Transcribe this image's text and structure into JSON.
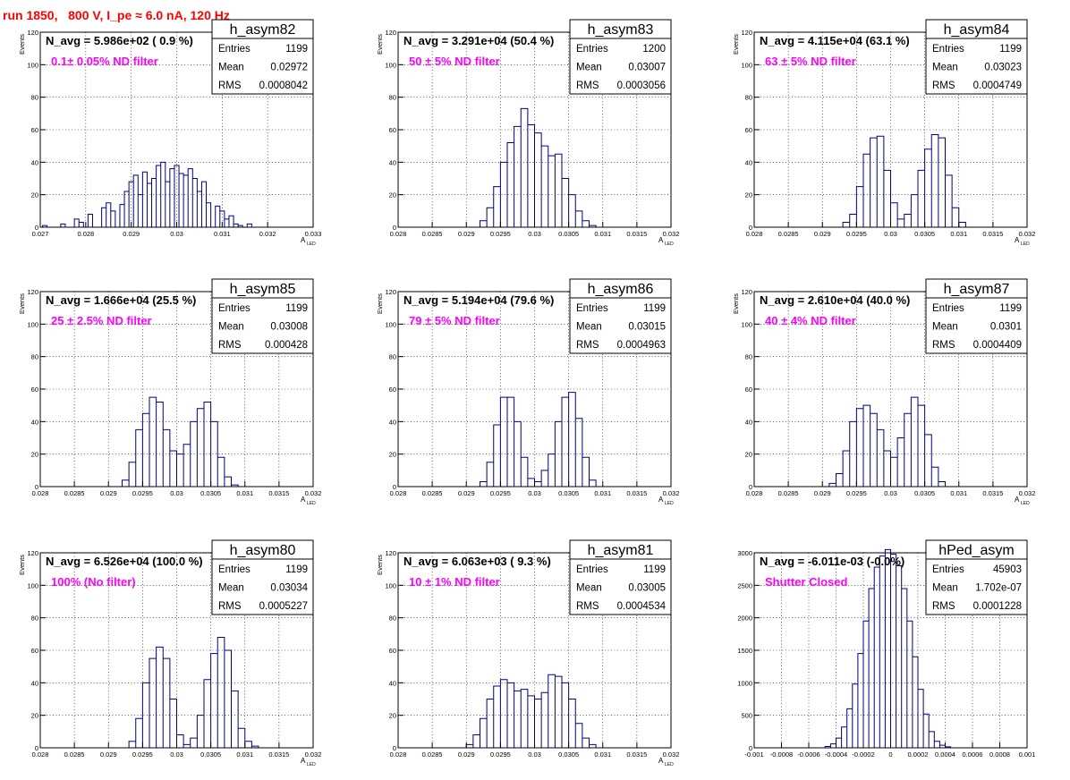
{
  "header": {
    "run_title": "run 1850,   800 V, I_pe ≈ 6.0 nA, 120 Hz"
  },
  "style": {
    "histogram_color": "#000080",
    "title_color": "#ff0000",
    "annotation_color": "#ff00ff",
    "grid_color": "#000000"
  },
  "chart_data": [
    {
      "type": "histogram",
      "name": "h_asym82",
      "navg": "N_avg = 5.986e+02 ( 0.9 %)",
      "filter": "0.1± 0.05% ND filter",
      "stats": {
        "entries_label": "Entries",
        "entries": "1199",
        "mean_label": "Mean",
        "mean": "0.02972",
        "rms_label": "RMS",
        "rms": "0.0008042"
      },
      "ylabel": "Events",
      "xlabel": "A",
      "xlabel_sub": "LED",
      "xlim": [
        0.027,
        0.033
      ],
      "ylim": [
        0,
        120
      ],
      "xticks": [
        "0.027",
        "0.028",
        "0.029",
        "0.03",
        "0.031",
        "0.032",
        "0.033"
      ],
      "yticks": [
        "0",
        "20",
        "40",
        "60",
        "80",
        "100",
        "120"
      ],
      "bins": [
        [
          0.0271,
          1
        ],
        [
          0.0275,
          2
        ],
        [
          0.0278,
          5
        ],
        [
          0.0279,
          3
        ],
        [
          0.0281,
          8
        ],
        [
          0.0284,
          12
        ],
        [
          0.0285,
          15
        ],
        [
          0.0286,
          10
        ],
        [
          0.0288,
          14
        ],
        [
          0.0289,
          22
        ],
        [
          0.029,
          28
        ],
        [
          0.0291,
          32
        ],
        [
          0.0292,
          20
        ],
        [
          0.0293,
          34
        ],
        [
          0.0294,
          27
        ],
        [
          0.0295,
          30
        ],
        [
          0.0296,
          38
        ],
        [
          0.0297,
          40
        ],
        [
          0.0298,
          28
        ],
        [
          0.0299,
          36
        ],
        [
          0.03,
          38
        ],
        [
          0.0301,
          33
        ],
        [
          0.0302,
          32
        ],
        [
          0.0303,
          36
        ],
        [
          0.0304,
          30
        ],
        [
          0.0305,
          22
        ],
        [
          0.0306,
          28
        ],
        [
          0.0307,
          15
        ],
        [
          0.0309,
          13
        ],
        [
          0.031,
          10
        ],
        [
          0.0311,
          5
        ],
        [
          0.0312,
          7
        ],
        [
          0.0313,
          2
        ],
        [
          0.0314,
          1
        ],
        [
          0.0316,
          2
        ]
      ]
    },
    {
      "type": "histogram",
      "name": "h_asym83",
      "navg": "N_avg = 3.291e+04 (50.4 %)",
      "filter": "50 ± 5% ND filter",
      "stats": {
        "entries_label": "Entries",
        "entries": "1200",
        "mean_label": "Mean",
        "mean": "0.03007",
        "rms_label": "RMS",
        "rms": "0.0003056"
      },
      "ylabel": "Events",
      "xlabel": "A",
      "xlabel_sub": "LED",
      "xlim": [
        0.028,
        0.032
      ],
      "ylim": [
        0,
        120
      ],
      "xticks": [
        "0.028",
        "0.0285",
        "0.029",
        "0.0295",
        "0.03",
        "0.0305",
        "0.031",
        "0.0315",
        "0.032"
      ],
      "yticks": [
        "0",
        "20",
        "40",
        "60",
        "80",
        "100",
        "120"
      ],
      "bins": [
        [
          0.02925,
          4
        ],
        [
          0.02935,
          12
        ],
        [
          0.02945,
          25
        ],
        [
          0.02955,
          40
        ],
        [
          0.02965,
          52
        ],
        [
          0.02975,
          62
        ],
        [
          0.02985,
          73
        ],
        [
          0.02995,
          63
        ],
        [
          0.03005,
          58
        ],
        [
          0.03015,
          50
        ],
        [
          0.03025,
          44
        ],
        [
          0.03035,
          45
        ],
        [
          0.03045,
          30
        ],
        [
          0.03055,
          20
        ],
        [
          0.03065,
          10
        ],
        [
          0.03075,
          4
        ],
        [
          0.03085,
          1
        ]
      ]
    },
    {
      "type": "histogram",
      "name": "h_asym84",
      "navg": "N_avg = 4.115e+04 (63.1 %)",
      "filter": "63 ± 5% ND filter",
      "stats": {
        "entries_label": "Entries",
        "entries": "1199",
        "mean_label": "Mean",
        "mean": "0.03023",
        "rms_label": "RMS",
        "rms": "0.0004749"
      },
      "ylabel": "Events",
      "xlabel": "A",
      "xlabel_sub": "LED",
      "xlim": [
        0.028,
        0.032
      ],
      "ylim": [
        0,
        120
      ],
      "xticks": [
        "0.028",
        "0.0285",
        "0.029",
        "0.0295",
        "0.03",
        "0.0305",
        "0.031",
        "0.0315",
        "0.032"
      ],
      "yticks": [
        "0",
        "20",
        "40",
        "60",
        "80",
        "100",
        "120"
      ],
      "bins": [
        [
          0.02935,
          3
        ],
        [
          0.02945,
          8
        ],
        [
          0.02955,
          25
        ],
        [
          0.02965,
          45
        ],
        [
          0.02975,
          55
        ],
        [
          0.02985,
          56
        ],
        [
          0.02995,
          35
        ],
        [
          0.03005,
          15
        ],
        [
          0.03015,
          5
        ],
        [
          0.03025,
          8
        ],
        [
          0.03035,
          20
        ],
        [
          0.03045,
          35
        ],
        [
          0.03055,
          48
        ],
        [
          0.03065,
          57
        ],
        [
          0.03075,
          55
        ],
        [
          0.03085,
          32
        ],
        [
          0.03095,
          12
        ],
        [
          0.03105,
          3
        ]
      ]
    },
    {
      "type": "histogram",
      "name": "h_asym85",
      "navg": "N_avg = 1.666e+04 (25.5 %)",
      "filter": "25 ± 2.5% ND filter",
      "stats": {
        "entries_label": "Entries",
        "entries": "1199",
        "mean_label": "Mean",
        "mean": "0.03008",
        "rms_label": "RMS",
        "rms": "0.000428"
      },
      "ylabel": "Events",
      "xlabel": "A",
      "xlabel_sub": "LED",
      "xlim": [
        0.028,
        0.032
      ],
      "ylim": [
        0,
        120
      ],
      "xticks": [
        "0.028",
        "0.0285",
        "0.029",
        "0.0295",
        "0.03",
        "0.0305",
        "0.031",
        "0.0315",
        "0.032"
      ],
      "yticks": [
        "0",
        "20",
        "40",
        "60",
        "80",
        "100",
        "120"
      ],
      "bins": [
        [
          0.02925,
          4
        ],
        [
          0.02935,
          15
        ],
        [
          0.02945,
          35
        ],
        [
          0.02955,
          45
        ],
        [
          0.02965,
          55
        ],
        [
          0.02975,
          52
        ],
        [
          0.02985,
          35
        ],
        [
          0.02995,
          22
        ],
        [
          0.03005,
          20
        ],
        [
          0.03015,
          26
        ],
        [
          0.03025,
          40
        ],
        [
          0.03035,
          48
        ],
        [
          0.03045,
          52
        ],
        [
          0.03055,
          40
        ],
        [
          0.03065,
          18
        ],
        [
          0.03075,
          6
        ],
        [
          0.03085,
          1
        ]
      ]
    },
    {
      "type": "histogram",
      "name": "h_asym86",
      "navg": "N_avg = 5.194e+04 (79.6 %)",
      "filter": "79 ± 5% ND filter",
      "stats": {
        "entries_label": "Entries",
        "entries": "1199",
        "mean_label": "Mean",
        "mean": "0.03015",
        "rms_label": "RMS",
        "rms": "0.0004963"
      },
      "ylabel": "Events",
      "xlabel": "A",
      "xlabel_sub": "LED",
      "xlim": [
        0.028,
        0.032
      ],
      "ylim": [
        0,
        120
      ],
      "xticks": [
        "0.028",
        "0.0285",
        "0.029",
        "0.0295",
        "0.03",
        "0.0305",
        "0.031",
        "0.0315",
        "0.032"
      ],
      "yticks": [
        "0",
        "20",
        "40",
        "60",
        "80",
        "100",
        "120"
      ],
      "bins": [
        [
          0.02925,
          3
        ],
        [
          0.02935,
          15
        ],
        [
          0.02945,
          38
        ],
        [
          0.02955,
          55
        ],
        [
          0.02965,
          55
        ],
        [
          0.02975,
          40
        ],
        [
          0.02985,
          18
        ],
        [
          0.02995,
          5
        ],
        [
          0.03005,
          3
        ],
        [
          0.03015,
          10
        ],
        [
          0.03025,
          20
        ],
        [
          0.03035,
          40
        ],
        [
          0.03045,
          55
        ],
        [
          0.03055,
          58
        ],
        [
          0.03065,
          42
        ],
        [
          0.03075,
          18
        ],
        [
          0.03085,
          4
        ]
      ]
    },
    {
      "type": "histogram",
      "name": "h_asym87",
      "navg": "N_avg = 2.610e+04 (40.0 %)",
      "filter": "40 ± 4% ND filter",
      "stats": {
        "entries_label": "Entries",
        "entries": "1199",
        "mean_label": "Mean",
        "mean": "0.0301",
        "rms_label": "RMS",
        "rms": "0.0004409"
      },
      "ylabel": "Events",
      "xlabel": "A",
      "xlabel_sub": "LED",
      "xlim": [
        0.028,
        0.032
      ],
      "ylim": [
        0,
        120
      ],
      "xticks": [
        "0.028",
        "0.0285",
        "0.029",
        "0.0295",
        "0.03",
        "0.0305",
        "0.031",
        "0.0315",
        "0.032"
      ],
      "yticks": [
        "0",
        "20",
        "40",
        "60",
        "80",
        "100",
        "120"
      ],
      "bins": [
        [
          0.02915,
          2
        ],
        [
          0.02925,
          8
        ],
        [
          0.02935,
          22
        ],
        [
          0.02945,
          40
        ],
        [
          0.02955,
          48
        ],
        [
          0.02965,
          50
        ],
        [
          0.02975,
          45
        ],
        [
          0.02985,
          35
        ],
        [
          0.02995,
          22
        ],
        [
          0.03005,
          18
        ],
        [
          0.03015,
          30
        ],
        [
          0.03025,
          45
        ],
        [
          0.03035,
          55
        ],
        [
          0.03045,
          50
        ],
        [
          0.03055,
          32
        ],
        [
          0.03065,
          12
        ],
        [
          0.03075,
          3
        ]
      ]
    },
    {
      "type": "histogram",
      "name": "h_asym80",
      "navg": "N_avg = 6.526e+04 (100.0 %)",
      "filter": "100% (No filter)",
      "stats": {
        "entries_label": "Entries",
        "entries": "1199",
        "mean_label": "Mean",
        "mean": "0.03034",
        "rms_label": "RMS",
        "rms": "0.0005227"
      },
      "ylabel": "Events",
      "xlabel": "A",
      "xlabel_sub": "LED",
      "xlim": [
        0.028,
        0.032
      ],
      "ylim": [
        0,
        120
      ],
      "xticks": [
        "0.028",
        "0.0285",
        "0.029",
        "0.0295",
        "0.03",
        "0.0305",
        "0.031",
        "0.0315",
        "0.032"
      ],
      "yticks": [
        "0",
        "20",
        "40",
        "60",
        "80",
        "100",
        "120"
      ],
      "bins": [
        [
          0.02935,
          4
        ],
        [
          0.02945,
          18
        ],
        [
          0.02955,
          40
        ],
        [
          0.02965,
          55
        ],
        [
          0.02975,
          62
        ],
        [
          0.02985,
          55
        ],
        [
          0.02995,
          30
        ],
        [
          0.03005,
          8
        ],
        [
          0.03015,
          2
        ],
        [
          0.03025,
          6
        ],
        [
          0.03035,
          20
        ],
        [
          0.03045,
          42
        ],
        [
          0.03055,
          58
        ],
        [
          0.03065,
          68
        ],
        [
          0.03075,
          60
        ],
        [
          0.03085,
          35
        ],
        [
          0.03095,
          12
        ],
        [
          0.03105,
          4
        ],
        [
          0.03115,
          1
        ]
      ]
    },
    {
      "type": "histogram",
      "name": "h_asym81",
      "navg": "N_avg = 6.063e+03 ( 9.3 %)",
      "filter": "10 ± 1% ND filter",
      "stats": {
        "entries_label": "Entries",
        "entries": "1199",
        "mean_label": "Mean",
        "mean": "0.03005",
        "rms_label": "RMS",
        "rms": "0.0004534"
      },
      "ylabel": "Events",
      "xlabel": "A",
      "xlabel_sub": "LED",
      "xlim": [
        0.028,
        0.032
      ],
      "ylim": [
        0,
        120
      ],
      "xticks": [
        "0.028",
        "0.0285",
        "0.029",
        "0.0295",
        "0.03",
        "0.0305",
        "0.031",
        "0.0315",
        "0.032"
      ],
      "yticks": [
        "0",
        "20",
        "40",
        "60",
        "80",
        "100",
        "120"
      ],
      "bins": [
        [
          0.02905,
          2
        ],
        [
          0.02915,
          8
        ],
        [
          0.02925,
          18
        ],
        [
          0.02935,
          30
        ],
        [
          0.02945,
          38
        ],
        [
          0.02955,
          42
        ],
        [
          0.02965,
          40
        ],
        [
          0.02975,
          35
        ],
        [
          0.02985,
          36
        ],
        [
          0.02995,
          32
        ],
        [
          0.03005,
          30
        ],
        [
          0.03015,
          34
        ],
        [
          0.03025,
          45
        ],
        [
          0.03035,
          44
        ],
        [
          0.03045,
          40
        ],
        [
          0.03055,
          30
        ],
        [
          0.03065,
          15
        ],
        [
          0.03075,
          6
        ],
        [
          0.03085,
          2
        ]
      ]
    },
    {
      "type": "histogram",
      "name": "hPed_asym",
      "navg": "N_avg = -6.011e-03 (-0.0%)",
      "filter": "Shutter Closed",
      "stats": {
        "entries_label": "Entries",
        "entries": "45903",
        "mean_label": "Mean",
        "mean": "1.702e-07",
        "rms_label": "RMS",
        "rms": "0.0001228"
      },
      "ylabel": "",
      "xlabel": "",
      "xlabel_sub": "",
      "xlim": [
        -0.001,
        0.001
      ],
      "ylim": [
        0,
        3000
      ],
      "xticks": [
        "-0.001",
        "-0.0008",
        "-0.0006",
        "-0.0004",
        "-0.0002",
        "0",
        "0.0002",
        "0.0004",
        "0.0006",
        "0.0008",
        "0.001"
      ],
      "yticks": [
        "0",
        "500",
        "1000",
        "1500",
        "2000",
        "2500",
        "3000"
      ],
      "bins": [
        [
          -0.00046,
          20
        ],
        [
          -0.00042,
          60
        ],
        [
          -0.00038,
          150
        ],
        [
          -0.00034,
          320
        ],
        [
          -0.0003,
          600
        ],
        [
          -0.00026,
          980
        ],
        [
          -0.00022,
          1450
        ],
        [
          -0.00018,
          1950
        ],
        [
          -0.00014,
          2450
        ],
        [
          -0.0001,
          2780
        ],
        [
          -6e-05,
          2950
        ],
        [
          -2e-05,
          3050
        ],
        [
          2e-05,
          2980
        ],
        [
          6e-05,
          2800
        ],
        [
          0.0001,
          2450
        ],
        [
          0.00014,
          1950
        ],
        [
          0.00018,
          1400
        ],
        [
          0.00022,
          900
        ],
        [
          0.00026,
          520
        ],
        [
          0.0003,
          250
        ],
        [
          0.00034,
          100
        ],
        [
          0.00038,
          40
        ],
        [
          0.00042,
          15
        ]
      ]
    }
  ]
}
